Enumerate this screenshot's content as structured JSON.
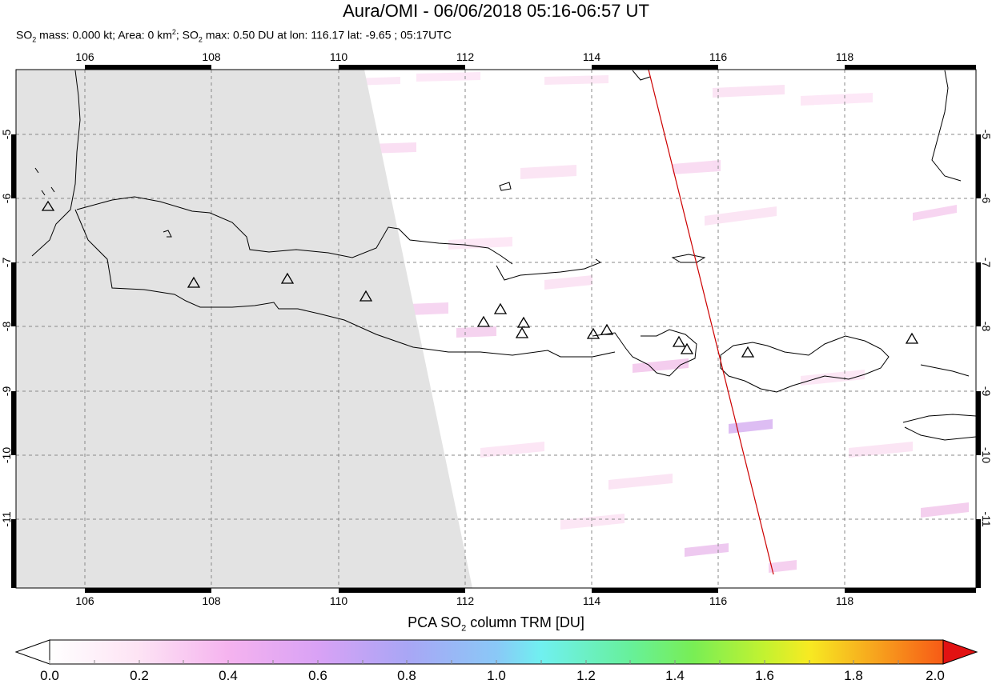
{
  "title": "Aura/OMI - 06/06/2018 05:16-06:57 UT",
  "subtitle": {
    "p1": "SO",
    "sub1": "2",
    "p2": " mass: 0.000 kt; Area: 0 km",
    "sup1": "2",
    "p3": "; SO",
    "sub2": "2",
    "p4": " max: 0.50 DU at lon: 116.17 lat: -9.65 ; 05:17UTC"
  },
  "map": {
    "lon_range": [
      105,
      120
    ],
    "lat_range": [
      -12,
      -4
    ],
    "lon_ticks": [
      "106",
      "108",
      "110",
      "112",
      "114",
      "116",
      "118"
    ],
    "lat_ticks": [
      "-5",
      "-6",
      "-7",
      "-8",
      "-9",
      "-10",
      "-11"
    ],
    "volcano_count": 16,
    "no_data_color": "#e3e3e3",
    "track_color": "#cc0000",
    "max_point": {
      "lon": 116.17,
      "lat": -9.65
    }
  },
  "colorbar": {
    "title_p1": "PCA SO",
    "title_sub": "2",
    "title_p2": " column TRM [DU]",
    "ticks": [
      "0.0",
      "0.2",
      "0.4",
      "0.6",
      "0.8",
      "1.0",
      "1.2",
      "1.4",
      "1.6",
      "1.8",
      "2.0"
    ],
    "colors": [
      "#ffffff",
      "#fde3f4",
      "#f5b3ef",
      "#d9a2f5",
      "#a9a6f5",
      "#8ac8f7",
      "#70f0f0",
      "#67f09a",
      "#78ee55",
      "#c3f230",
      "#f7ea22",
      "#f7a81e",
      "#f75a16",
      "#e21212"
    ]
  }
}
